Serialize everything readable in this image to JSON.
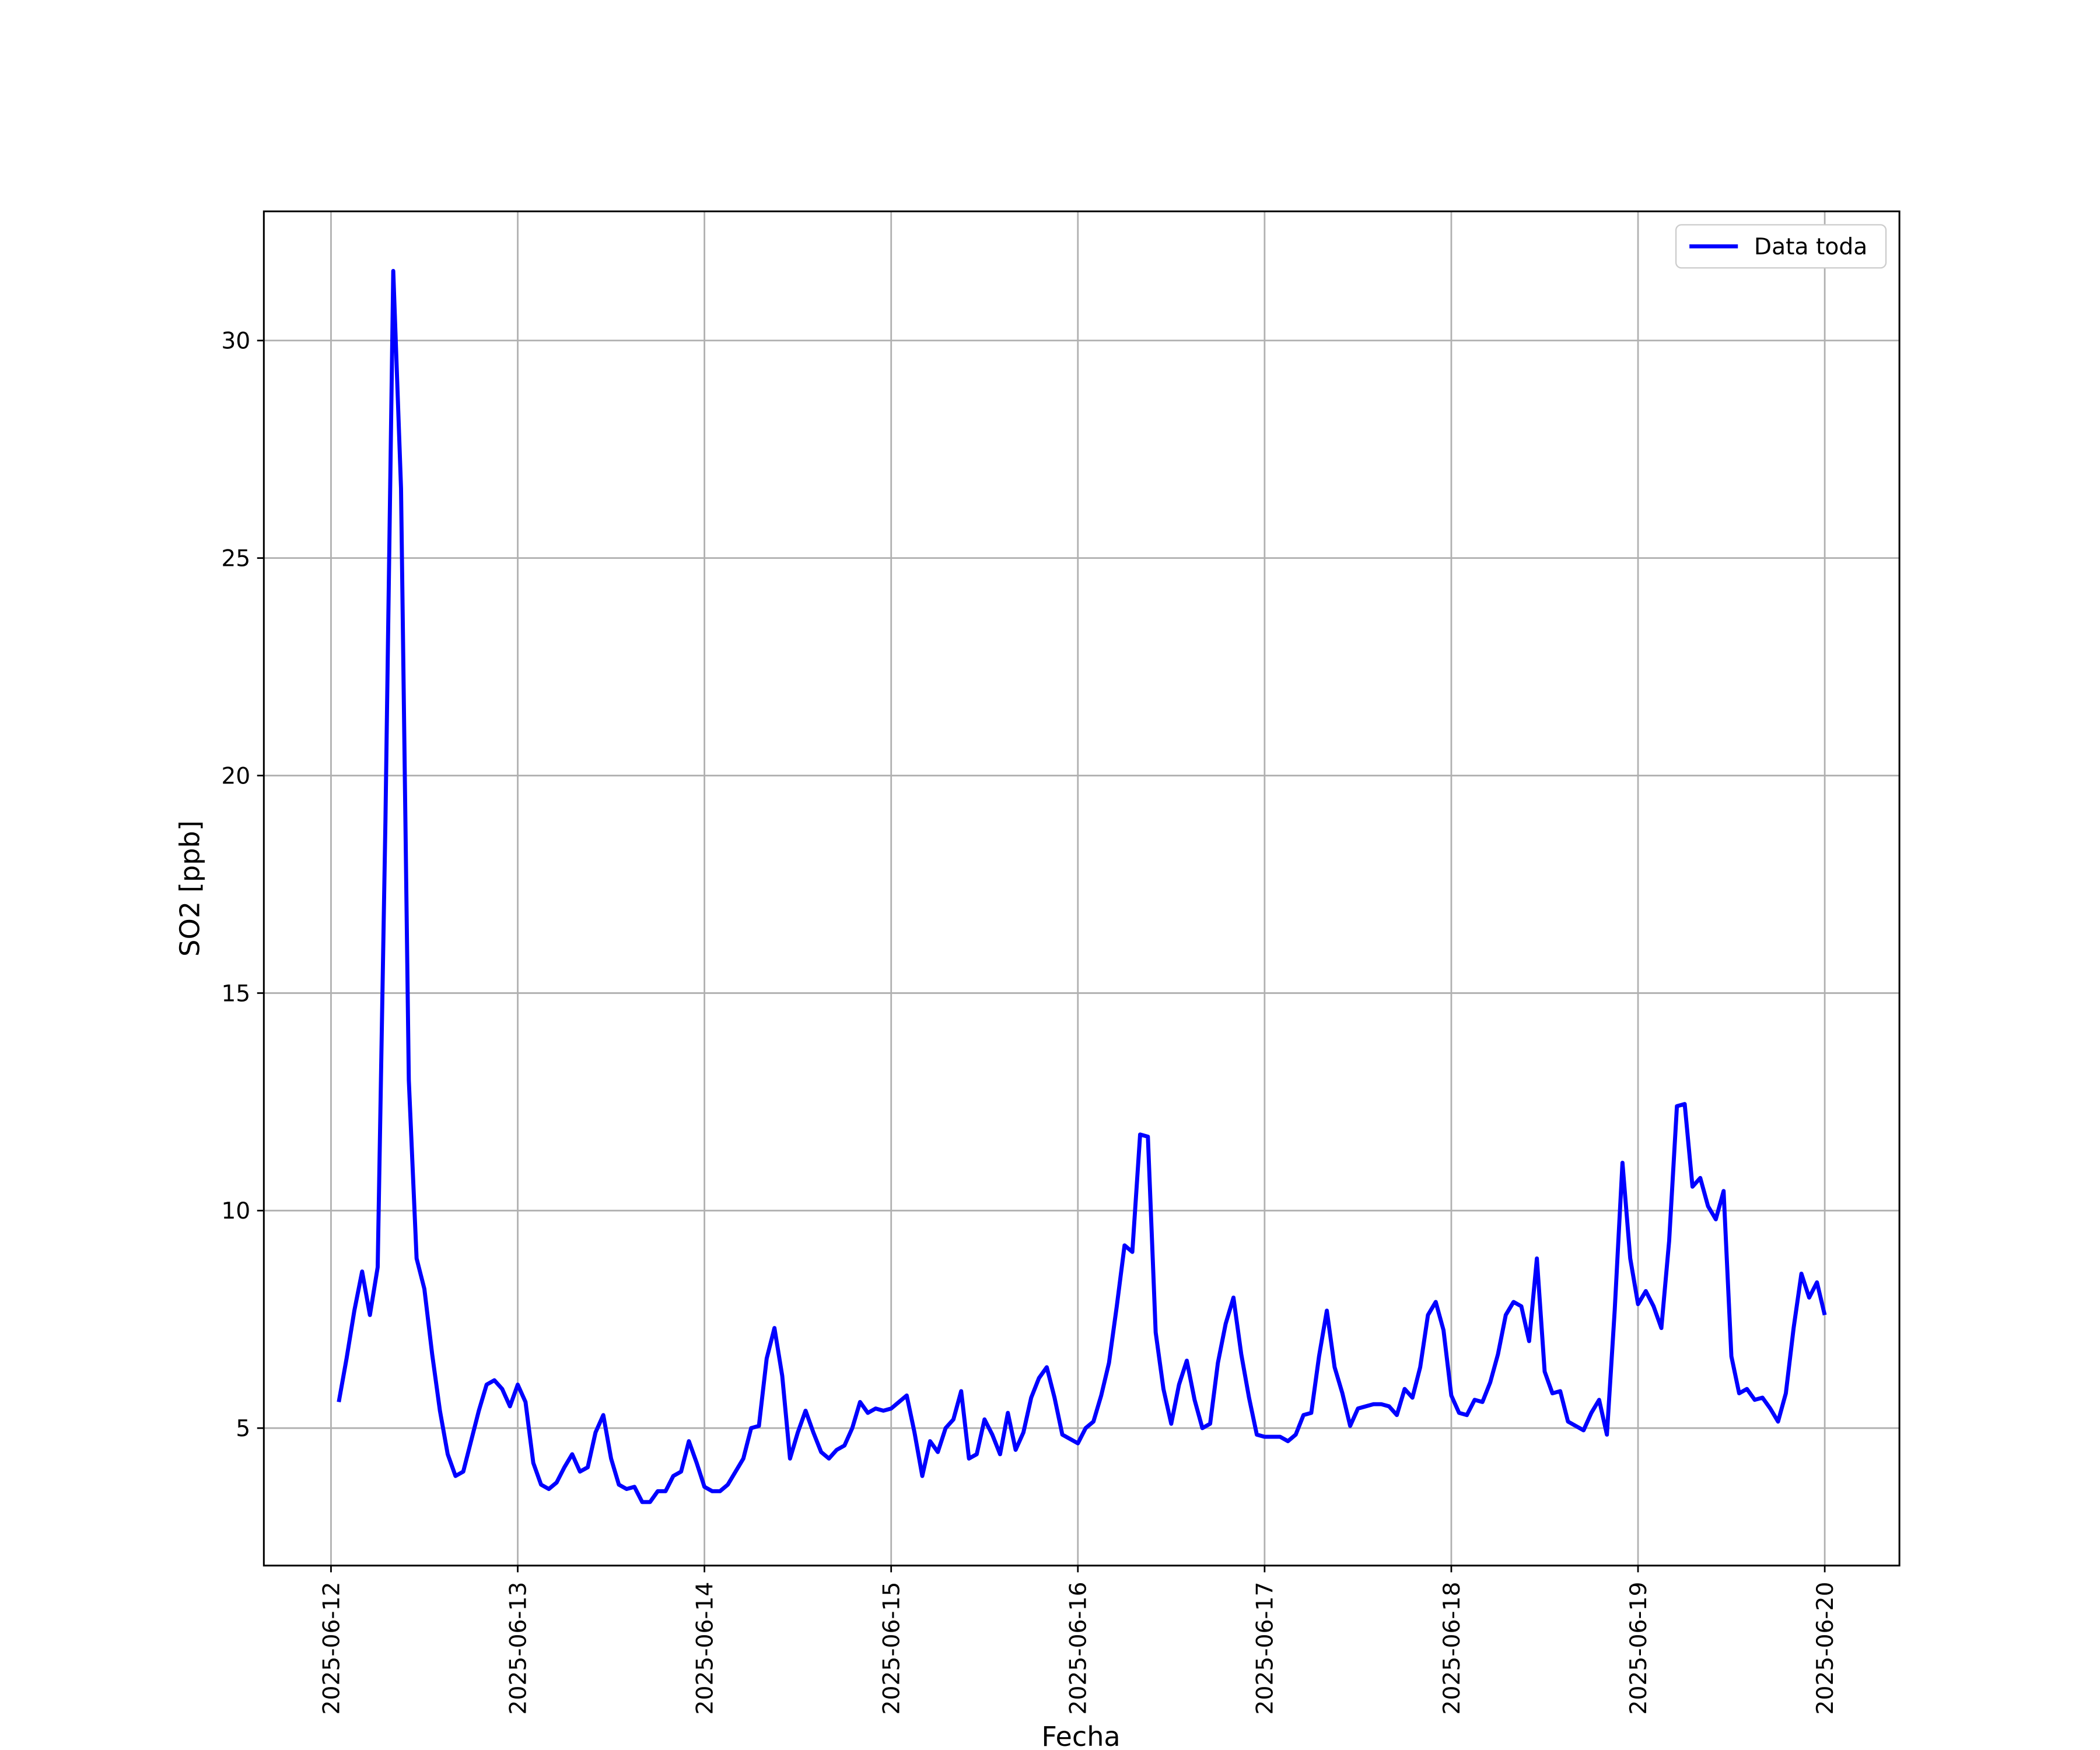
{
  "chart_data": {
    "type": "line",
    "x_label": "Fecha",
    "y_label": "SO2 [ppb]",
    "x": [
      "2025-06-12 01:00",
      "2025-06-12 02:00",
      "2025-06-12 03:00",
      "2025-06-12 04:00",
      "2025-06-12 05:00",
      "2025-06-12 06:00",
      "2025-06-12 07:00",
      "2025-06-12 08:00",
      "2025-06-12 09:00",
      "2025-06-12 10:00",
      "2025-06-12 11:00",
      "2025-06-12 12:00",
      "2025-06-12 13:00",
      "2025-06-12 14:00",
      "2025-06-12 15:00",
      "2025-06-12 16:00",
      "2025-06-12 17:00",
      "2025-06-12 18:00",
      "2025-06-12 19:00",
      "2025-06-12 20:00",
      "2025-06-12 21:00",
      "2025-06-12 22:00",
      "2025-06-12 23:00",
      "2025-06-13 00:00",
      "2025-06-13 01:00",
      "2025-06-13 02:00",
      "2025-06-13 03:00",
      "2025-06-13 04:00",
      "2025-06-13 05:00",
      "2025-06-13 06:00",
      "2025-06-13 07:00",
      "2025-06-13 08:00",
      "2025-06-13 09:00",
      "2025-06-13 10:00",
      "2025-06-13 11:00",
      "2025-06-13 12:00",
      "2025-06-13 13:00",
      "2025-06-13 14:00",
      "2025-06-13 15:00",
      "2025-06-13 16:00",
      "2025-06-13 17:00",
      "2025-06-13 18:00",
      "2025-06-13 19:00",
      "2025-06-13 20:00",
      "2025-06-13 21:00",
      "2025-06-13 22:00",
      "2025-06-13 23:00",
      "2025-06-14 00:00",
      "2025-06-14 01:00",
      "2025-06-14 02:00",
      "2025-06-14 03:00",
      "2025-06-14 04:00",
      "2025-06-14 05:00",
      "2025-06-14 06:00",
      "2025-06-14 07:00",
      "2025-06-14 08:00",
      "2025-06-14 09:00",
      "2025-06-14 10:00",
      "2025-06-14 11:00",
      "2025-06-14 12:00",
      "2025-06-14 13:00",
      "2025-06-14 14:00",
      "2025-06-14 15:00",
      "2025-06-14 16:00",
      "2025-06-14 17:00",
      "2025-06-14 18:00",
      "2025-06-14 19:00",
      "2025-06-14 20:00",
      "2025-06-14 21:00",
      "2025-06-14 22:00",
      "2025-06-14 23:00",
      "2025-06-15 00:00",
      "2025-06-15 01:00",
      "2025-06-15 02:00",
      "2025-06-15 03:00",
      "2025-06-15 04:00",
      "2025-06-15 05:00",
      "2025-06-15 06:00",
      "2025-06-15 07:00",
      "2025-06-15 08:00",
      "2025-06-15 09:00",
      "2025-06-15 10:00",
      "2025-06-15 11:00",
      "2025-06-15 12:00",
      "2025-06-15 13:00",
      "2025-06-15 14:00",
      "2025-06-15 15:00",
      "2025-06-15 16:00",
      "2025-06-15 17:00",
      "2025-06-15 18:00",
      "2025-06-15 19:00",
      "2025-06-15 20:00",
      "2025-06-15 21:00",
      "2025-06-15 22:00",
      "2025-06-15 23:00",
      "2025-06-16 00:00",
      "2025-06-16 01:00",
      "2025-06-16 02:00",
      "2025-06-16 03:00",
      "2025-06-16 04:00",
      "2025-06-16 05:00",
      "2025-06-16 06:00",
      "2025-06-16 07:00",
      "2025-06-16 08:00",
      "2025-06-16 09:00",
      "2025-06-16 10:00",
      "2025-06-16 11:00",
      "2025-06-16 12:00",
      "2025-06-16 13:00",
      "2025-06-16 14:00",
      "2025-06-16 15:00",
      "2025-06-16 16:00",
      "2025-06-16 17:00",
      "2025-06-16 18:00",
      "2025-06-16 19:00",
      "2025-06-16 20:00",
      "2025-06-16 21:00",
      "2025-06-16 22:00",
      "2025-06-16 23:00",
      "2025-06-17 00:00",
      "2025-06-17 01:00",
      "2025-06-17 02:00",
      "2025-06-17 03:00",
      "2025-06-17 04:00",
      "2025-06-17 05:00",
      "2025-06-17 06:00",
      "2025-06-17 07:00",
      "2025-06-17 08:00",
      "2025-06-17 09:00",
      "2025-06-17 10:00",
      "2025-06-17 11:00",
      "2025-06-17 12:00",
      "2025-06-17 13:00",
      "2025-06-17 14:00",
      "2025-06-17 15:00",
      "2025-06-17 16:00",
      "2025-06-17 17:00",
      "2025-06-17 18:00",
      "2025-06-17 19:00",
      "2025-06-17 20:00",
      "2025-06-17 21:00",
      "2025-06-17 22:00",
      "2025-06-17 23:00",
      "2025-06-18 00:00",
      "2025-06-18 01:00",
      "2025-06-18 02:00",
      "2025-06-18 03:00",
      "2025-06-18 04:00",
      "2025-06-18 05:00",
      "2025-06-18 06:00",
      "2025-06-18 07:00",
      "2025-06-18 08:00",
      "2025-06-18 09:00",
      "2025-06-18 10:00",
      "2025-06-18 11:00",
      "2025-06-18 12:00",
      "2025-06-18 13:00",
      "2025-06-18 14:00",
      "2025-06-18 15:00",
      "2025-06-18 16:00",
      "2025-06-18 17:00",
      "2025-06-18 18:00",
      "2025-06-18 19:00",
      "2025-06-18 20:00",
      "2025-06-18 21:00",
      "2025-06-18 22:00",
      "2025-06-18 23:00",
      "2025-06-19 00:00",
      "2025-06-19 01:00",
      "2025-06-19 02:00",
      "2025-06-19 03:00",
      "2025-06-19 04:00",
      "2025-06-19 05:00",
      "2025-06-19 06:00",
      "2025-06-19 07:00",
      "2025-06-19 08:00",
      "2025-06-19 09:00",
      "2025-06-19 10:00",
      "2025-06-19 11:00",
      "2025-06-19 12:00",
      "2025-06-19 13:00",
      "2025-06-19 14:00",
      "2025-06-19 15:00",
      "2025-06-19 16:00",
      "2025-06-19 17:00",
      "2025-06-19 18:00",
      "2025-06-19 19:00",
      "2025-06-19 20:00",
      "2025-06-19 21:00",
      "2025-06-19 22:00",
      "2025-06-19 23:00",
      "2025-06-20 00:00"
    ],
    "series": [
      {
        "name": "Data toda",
        "color": "#0000ff",
        "values": [
          5.6,
          6.6,
          7.7,
          8.6,
          7.6,
          8.7,
          19,
          31.6,
          26.6,
          13,
          8.9,
          8.2,
          6.7,
          5.4,
          4.4,
          3.9,
          4.0,
          4.7,
          5.4,
          6.0,
          6.1,
          5.9,
          5.5,
          6.0,
          5.6,
          4.2,
          3.7,
          3.6,
          3.75,
          4.1,
          4.4,
          4.0,
          4.1,
          4.9,
          5.3,
          4.3,
          3.7,
          3.6,
          3.65,
          3.3,
          3.3,
          3.55,
          3.55,
          3.9,
          4.0,
          4.7,
          4.2,
          3.65,
          3.55,
          3.55,
          3.7,
          4.0,
          4.3,
          5.0,
          5.05,
          6.6,
          7.3,
          6.2,
          4.3,
          4.9,
          5.4,
          4.9,
          4.45,
          4.3,
          4.5,
          4.6,
          5.0,
          5.6,
          5.35,
          5.45,
          5.4,
          5.45,
          5.6,
          5.75,
          4.9,
          3.9,
          4.7,
          4.45,
          5.0,
          5.2,
          5.85,
          4.3,
          4.4,
          5.2,
          4.85,
          4.4,
          5.35,
          4.5,
          4.9,
          5.7,
          6.15,
          6.4,
          5.7,
          4.85,
          4.75,
          4.65,
          5.0,
          5.15,
          5.75,
          6.5,
          7.8,
          9.2,
          9.05,
          11.75,
          11.7,
          7.2,
          5.9,
          5.1,
          6.0,
          6.55,
          5.65,
          5.0,
          5.1,
          6.5,
          7.4,
          8.0,
          6.7,
          5.7,
          4.85,
          4.8,
          4.8,
          4.8,
          4.7,
          4.85,
          5.3,
          5.35,
          6.65,
          7.7,
          6.4,
          5.8,
          5.05,
          5.45,
          5.5,
          5.55,
          5.55,
          5.5,
          5.3,
          5.9,
          5.7,
          6.4,
          7.6,
          7.9,
          7.25,
          5.75,
          5.35,
          5.3,
          5.65,
          5.6,
          6.05,
          6.7,
          7.6,
          7.9,
          7.8,
          7.0,
          8.9,
          6.3,
          5.8,
          5.85,
          5.15,
          5.05,
          4.95,
          5.35,
          5.65,
          4.85,
          7.7,
          11.1,
          8.9,
          7.85,
          8.15,
          7.8,
          7.3,
          9.3,
          12.4,
          12.45,
          10.55,
          10.75,
          10.1,
          9.8,
          10.45,
          6.65,
          5.8,
          5.9,
          5.65,
          5.7,
          5.45,
          5.15,
          5.8,
          7.3,
          8.55,
          8.0,
          8.35,
          7.6
        ]
      }
    ],
    "xlim": [
      "2025-06-11 15:22",
      "2025-06-20 09:36"
    ],
    "xticks": [
      "2025-06-12",
      "2025-06-13",
      "2025-06-14",
      "2025-06-15",
      "2025-06-16",
      "2025-06-17",
      "2025-06-18",
      "2025-06-19",
      "2025-06-20"
    ],
    "ylim": [
      1.84,
      32.97
    ],
    "yticks": [
      5,
      10,
      15,
      20,
      25,
      30
    ],
    "grid": true,
    "legend": "upper right"
  }
}
